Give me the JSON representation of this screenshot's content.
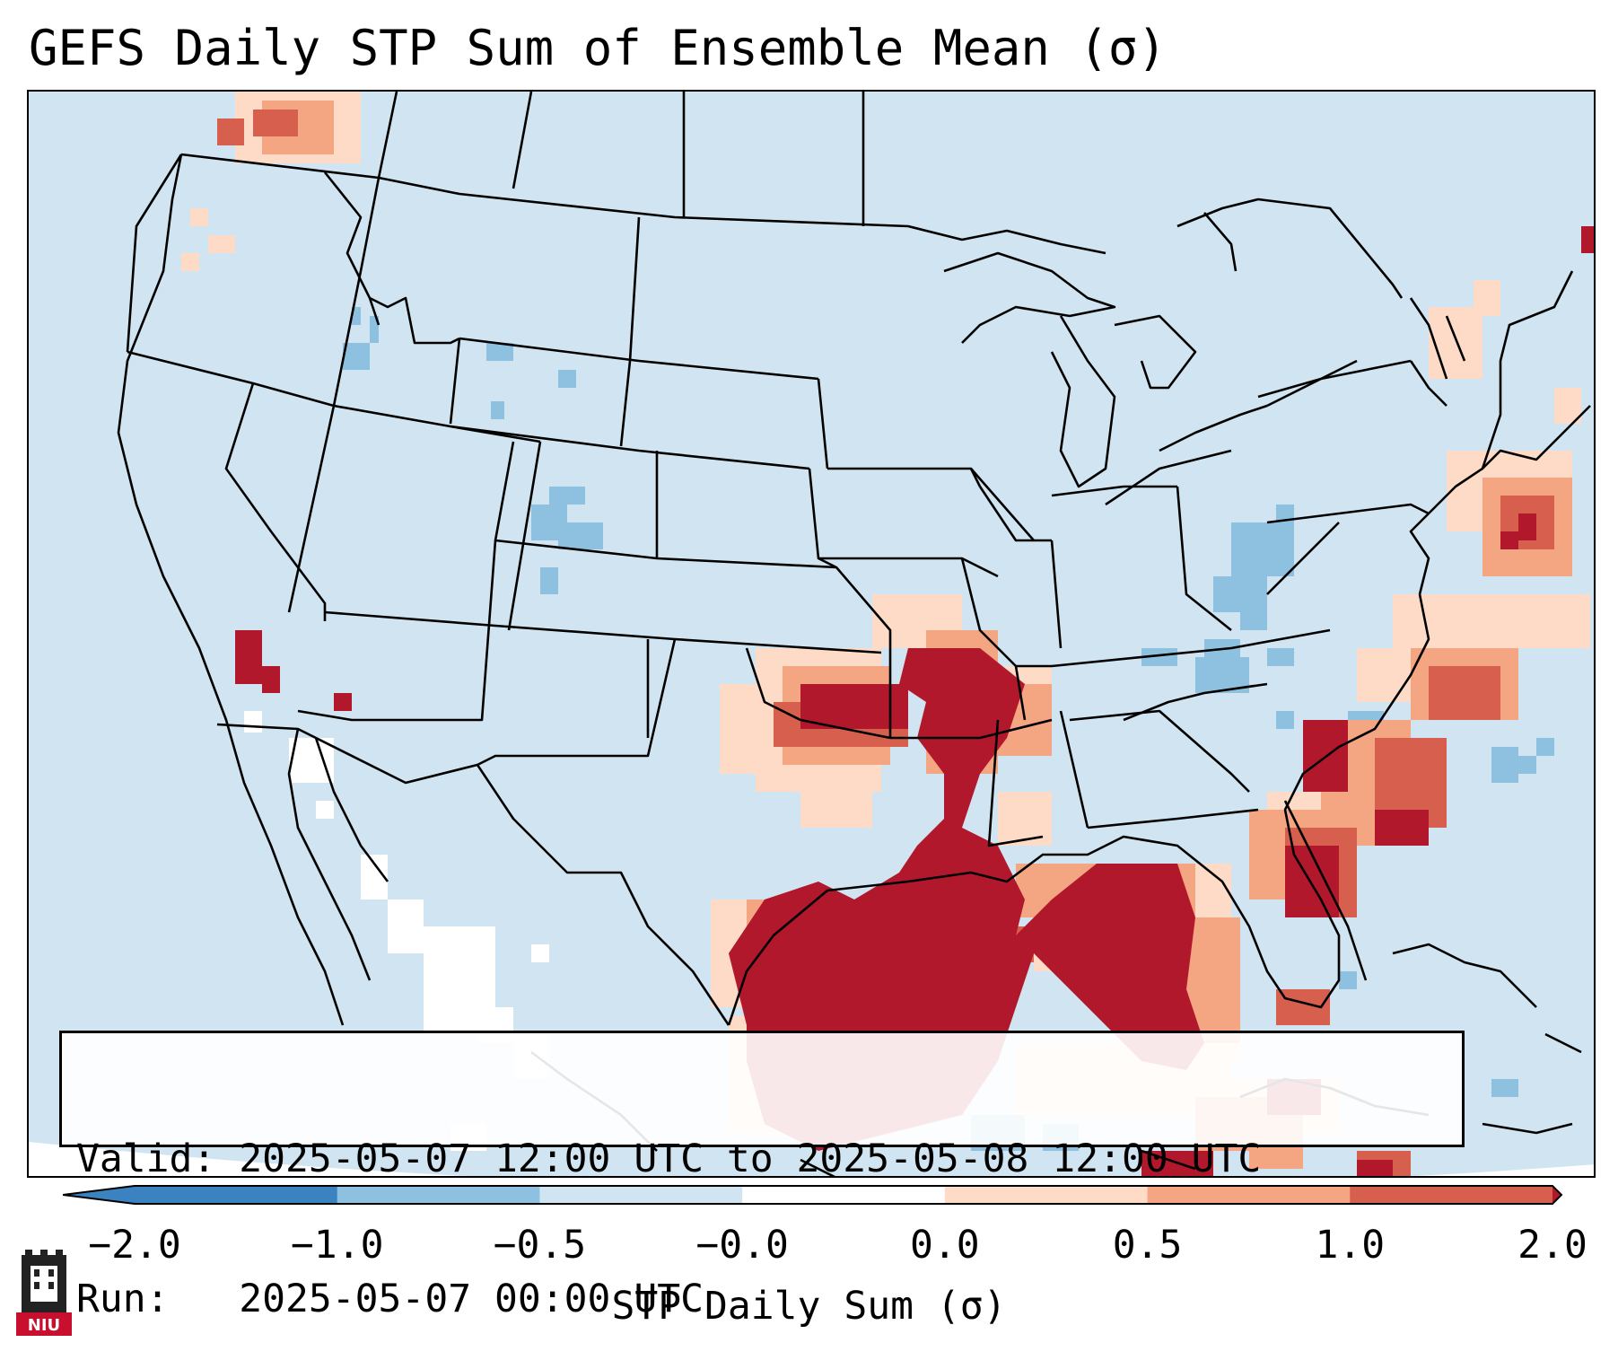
{
  "title": "GEFS Daily STP Sum of Ensemble Mean (σ)",
  "info": {
    "valid": "Valid: 2025-05-07 12:00 UTC to 2025-05-08 12:00 UTC",
    "run": "Run:   2025-05-07 00:00 UTC"
  },
  "colorbar": {
    "label": "STP Daily Sum (σ)",
    "ticks": [
      "−2.0",
      "−1.0",
      "−0.5",
      "−0.0",
      "0.0",
      "0.5",
      "1.0",
      "2.0"
    ],
    "colors": [
      "#3a82c0",
      "#8ec1df",
      "#d0e4f1",
      "#ffffff",
      "#fddbc7",
      "#f4a582",
      "#d6604d",
      "#b2182b"
    ],
    "extend": "both"
  },
  "map": {
    "background_color": "#d0e4f1",
    "outside_color": "#ffffff",
    "border_color": "#000000"
  },
  "logo": {
    "text": "NIU",
    "color": "#c8102e"
  }
}
